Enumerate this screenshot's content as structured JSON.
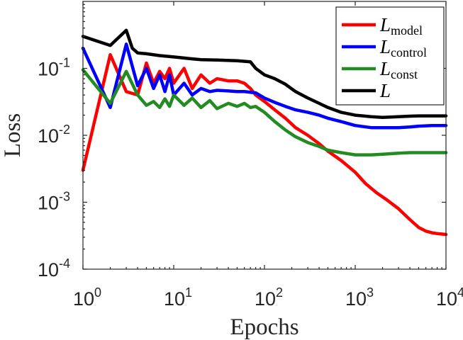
{
  "chart_data": {
    "type": "line",
    "xlabel": "Epochs",
    "ylabel": "Loss",
    "xscale": "log",
    "yscale": "log",
    "xlim": [
      1,
      10000
    ],
    "ylim": [
      0.0001,
      1
    ],
    "grid": false,
    "legend_position": "top-right",
    "x_ticks": [
      {
        "value": 1,
        "base": "10",
        "exp": "0"
      },
      {
        "value": 10,
        "base": "10",
        "exp": "1"
      },
      {
        "value": 100,
        "base": "10",
        "exp": "2"
      },
      {
        "value": 1000,
        "base": "10",
        "exp": "3"
      },
      {
        "value": 10000,
        "base": "10",
        "exp": "4"
      }
    ],
    "y_ticks": [
      {
        "value": 0.0001,
        "base": "10",
        "exp": "-4"
      },
      {
        "value": 0.001,
        "base": "10",
        "exp": "-3"
      },
      {
        "value": 0.01,
        "base": "10",
        "exp": "-2"
      },
      {
        "value": 0.1,
        "base": "10",
        "exp": "-1"
      }
    ],
    "series": [
      {
        "legend_main": "L",
        "legend_sub": "model",
        "color": "#ff0000",
        "x": [
          1,
          2,
          3,
          4,
          5,
          6,
          7,
          8,
          9,
          10,
          13,
          16,
          20,
          25,
          30,
          40,
          50,
          60,
          70,
          80,
          100,
          130,
          170,
          220,
          300,
          400,
          500,
          700,
          1000,
          1300,
          1700,
          2200,
          3000,
          4000,
          5000,
          6000,
          7000,
          8000,
          10000
        ],
        "y": [
          0.003,
          0.16,
          0.045,
          0.04,
          0.12,
          0.06,
          0.09,
          0.07,
          0.1,
          0.06,
          0.1,
          0.05,
          0.08,
          0.06,
          0.07,
          0.065,
          0.065,
          0.06,
          0.05,
          0.04,
          0.032,
          0.024,
          0.018,
          0.013,
          0.01,
          0.0075,
          0.0058,
          0.0042,
          0.0028,
          0.0019,
          0.0014,
          0.0011,
          0.0008,
          0.00055,
          0.00042,
          0.00037,
          0.00035,
          0.00034,
          0.00033
        ]
      },
      {
        "legend_main": "L",
        "legend_sub": "control",
        "color": "#0000ff",
        "x": [
          1,
          2,
          3,
          4,
          5,
          6,
          7,
          8,
          9,
          10,
          13,
          16,
          20,
          25,
          30,
          40,
          50,
          60,
          70,
          80,
          100,
          130,
          170,
          220,
          300,
          400,
          500,
          700,
          1000,
          1500,
          2000,
          3000,
          4000,
          5000,
          7000,
          10000
        ],
        "y": [
          0.2,
          0.026,
          0.23,
          0.055,
          0.1,
          0.05,
          0.08,
          0.045,
          0.08,
          0.04,
          0.06,
          0.04,
          0.05,
          0.045,
          0.047,
          0.046,
          0.045,
          0.045,
          0.044,
          0.043,
          0.036,
          0.031,
          0.027,
          0.024,
          0.022,
          0.02,
          0.018,
          0.016,
          0.014,
          0.013,
          0.013,
          0.013,
          0.0133,
          0.0137,
          0.014,
          0.014
        ]
      },
      {
        "legend_main": "L",
        "legend_sub": "const",
        "color": "#228b22",
        "x": [
          1,
          2,
          3,
          4,
          5,
          6,
          7,
          8,
          9,
          10,
          13,
          16,
          20,
          25,
          30,
          40,
          50,
          60,
          70,
          80,
          100,
          130,
          170,
          220,
          300,
          400,
          500,
          700,
          1000,
          1500,
          2000,
          3000,
          4000,
          5000,
          7000,
          10000
        ],
        "y": [
          0.095,
          0.03,
          0.09,
          0.04,
          0.028,
          0.032,
          0.026,
          0.035,
          0.027,
          0.04,
          0.028,
          0.036,
          0.026,
          0.033,
          0.025,
          0.03,
          0.027,
          0.03,
          0.026,
          0.027,
          0.022,
          0.016,
          0.012,
          0.0095,
          0.0078,
          0.0068,
          0.006,
          0.0055,
          0.0051,
          0.0051,
          0.0052,
          0.0054,
          0.0055,
          0.0055,
          0.0055,
          0.0055
        ]
      },
      {
        "legend_main": "L",
        "legend_sub": "",
        "color": "#000000",
        "x": [
          1,
          2,
          3,
          3.5,
          4,
          5,
          7,
          10,
          15,
          20,
          30,
          50,
          70,
          80,
          100,
          130,
          170,
          220,
          300,
          400,
          500,
          700,
          1000,
          1500,
          2000,
          3000,
          4000,
          5000,
          7000,
          10000
        ],
        "y": [
          0.3,
          0.22,
          0.37,
          0.2,
          0.17,
          0.165,
          0.155,
          0.148,
          0.14,
          0.135,
          0.133,
          0.13,
          0.125,
          0.1,
          0.08,
          0.07,
          0.058,
          0.045,
          0.036,
          0.03,
          0.026,
          0.022,
          0.02,
          0.019,
          0.0185,
          0.019,
          0.0193,
          0.0195,
          0.0195,
          0.0195
        ]
      }
    ]
  }
}
